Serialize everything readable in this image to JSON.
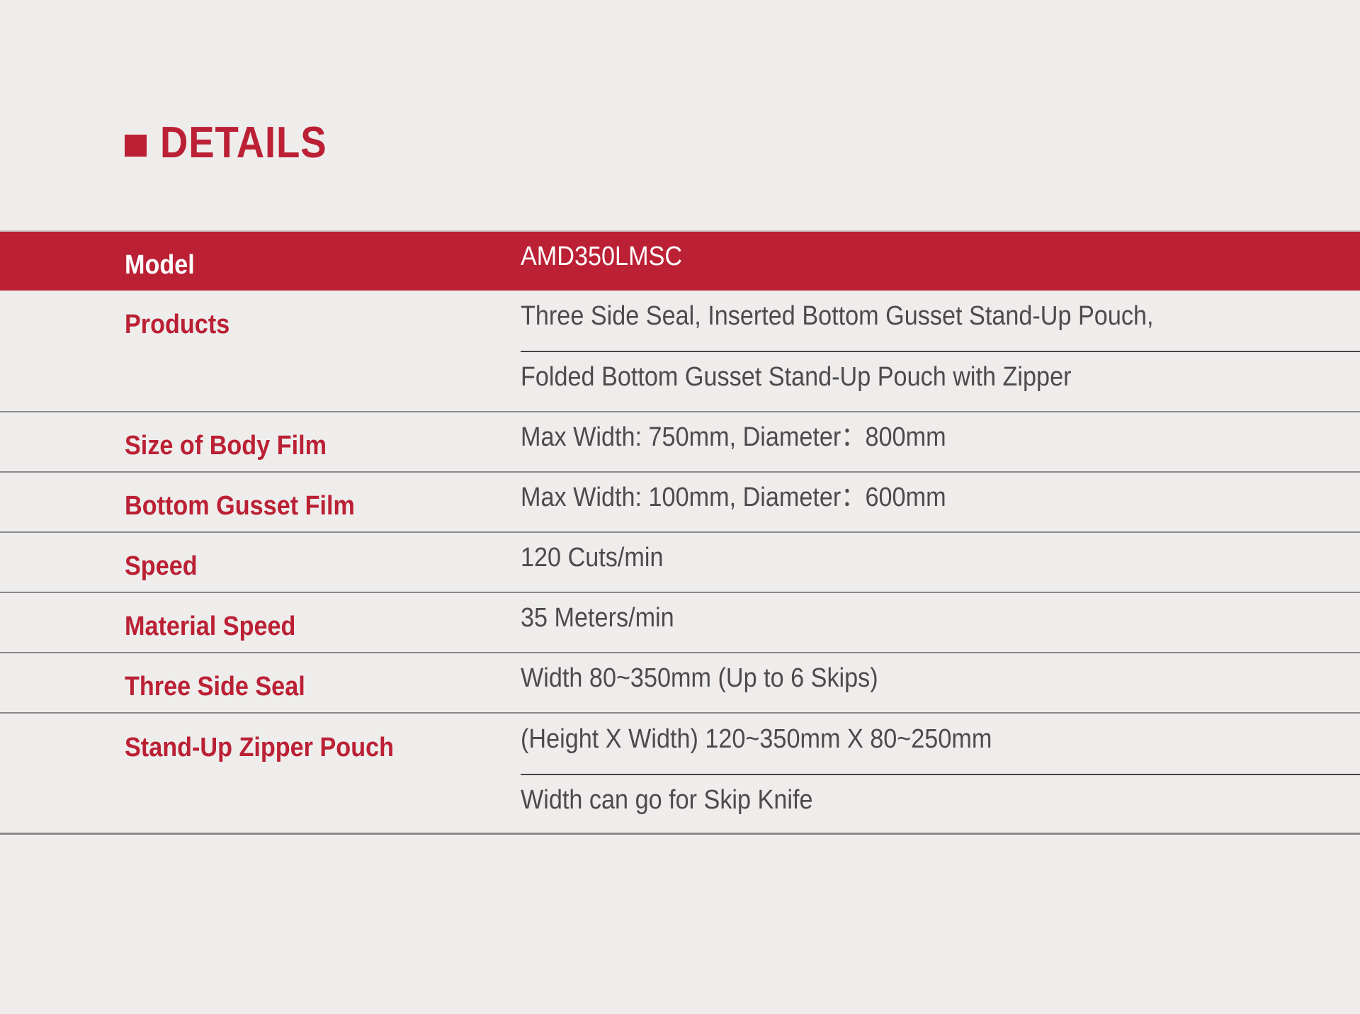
{
  "colors": {
    "accent_red": "#BB2034",
    "value_gray": "#4E4A4B",
    "background": "#EEEDEC",
    "separator": "#8B898C",
    "inner_separator": "#454249",
    "header_top_line": "#CBC5C2"
  },
  "title": {
    "text": "DETAILS"
  },
  "table": {
    "header": {
      "label": "Model",
      "value": "AMD350LMSC"
    },
    "rows": [
      {
        "label": "Products",
        "values": [
          "Three Side Seal, Inserted Bottom Gusset Stand-Up Pouch,",
          "Folded Bottom Gusset Stand-Up Pouch with Zipper"
        ]
      },
      {
        "label": "Size of Body Film",
        "values": [
          "Max Width: 750mm, Diameter：800mm"
        ]
      },
      {
        "label": "Bottom Gusset Film",
        "values": [
          "Max Width: 100mm, Diameter：600mm"
        ]
      },
      {
        "label": "Speed",
        "values": [
          "120 Cuts/min"
        ]
      },
      {
        "label": "Material Speed",
        "values": [
          "35 Meters/min"
        ]
      },
      {
        "label": "Three Side Seal",
        "values": [
          "Width 80~350mm (Up to 6 Skips)"
        ]
      },
      {
        "label": "Stand-Up Zipper Pouch",
        "values": [
          "(Height X Width) 120~350mm X 80~250mm",
          "Width can go for Skip Knife"
        ]
      }
    ]
  }
}
